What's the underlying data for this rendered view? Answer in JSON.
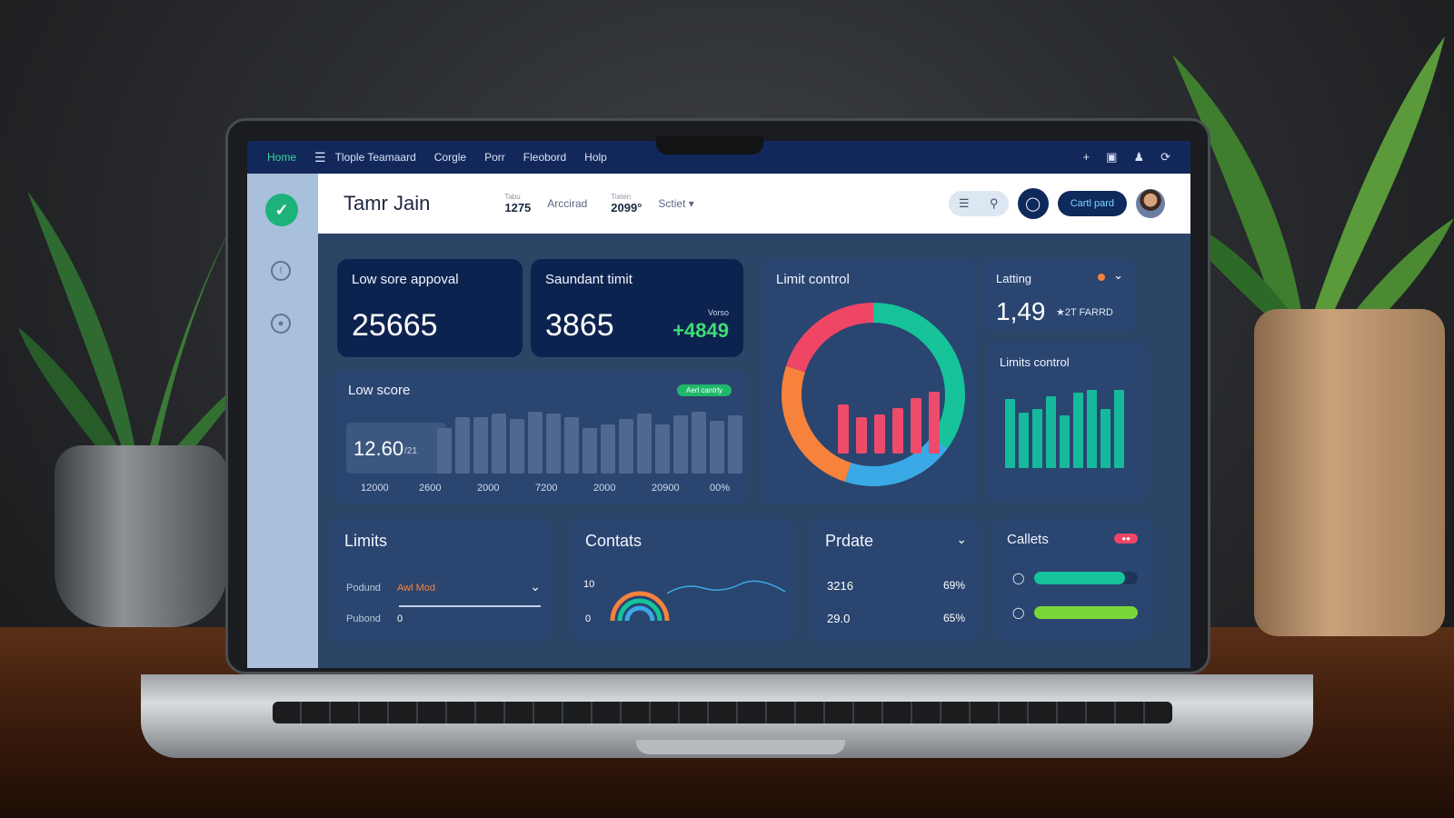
{
  "topbar": {
    "home": "Home",
    "items": [
      "Tlople Teamaard",
      "Corgle",
      "Porr",
      "Fleobord",
      "Holp"
    ],
    "icons": [
      "plus-icon",
      "document-icon",
      "users-icon",
      "refresh-icon"
    ]
  },
  "header": {
    "user_name": "Tamr Jain",
    "stat1_label": "Tabu",
    "stat1_value": "1275",
    "link1": "Arccirad",
    "stat2_label": "Tiaten",
    "stat2_value": "2099°",
    "select_label": "Sctiet",
    "card_button": "Cartl pard"
  },
  "cards": {
    "low_sore": {
      "title": "Low sore appoval",
      "value": "25665"
    },
    "saundant": {
      "title": "Saundant timit",
      "value": "3865",
      "delta_label": "Vorso",
      "delta": "+4849"
    },
    "limit_control": {
      "title": "Limit control"
    },
    "latting": {
      "title": "Latting",
      "value": "1,49",
      "sub": "★2T FARRD"
    },
    "limits_control": {
      "title": "Limits control"
    },
    "low_score": {
      "title": "Low score",
      "badge": "Aerl cantrly",
      "value": "12.60",
      "unit": "/21",
      "x_labels": [
        "12000",
        "2600",
        "2000",
        "7200",
        "2000",
        "20900",
        "00%"
      ]
    },
    "limits": {
      "title": "Limits",
      "row1_label": "Podund",
      "row1_value": "Awl Mod",
      "row2_label": "Pubond",
      "row2_value": "0"
    },
    "contats": {
      "title": "Contats",
      "y_top": "10",
      "y_bottom": "0"
    },
    "prdate": {
      "title": "Prdate",
      "rows": [
        {
          "a": "3216",
          "b": "69%"
        },
        {
          "a": "29.0",
          "b": "65%"
        }
      ]
    },
    "callets": {
      "title": "Callets",
      "badge": "●●",
      "progress": [
        0.88,
        1.0
      ]
    }
  },
  "chart_data": [
    {
      "type": "bar",
      "title": "Low score",
      "values": [
        5,
        6.2,
        6.2,
        6.6,
        6.0,
        6.8,
        6.6,
        6.2,
        5.0,
        5.4,
        6.0,
        6.6,
        5.4,
        6.4,
        6.8,
        5.8,
        6.4
      ],
      "x_tick_labels": [
        "12000",
        "2600",
        "2000",
        "7200",
        "2000",
        "20900",
        "00%"
      ]
    },
    {
      "type": "pie",
      "title": "Limit control",
      "slices": [
        {
          "value": 35,
          "color": "#16c39a"
        },
        {
          "value": 20,
          "color": "#3aa9e6"
        },
        {
          "value": 25,
          "color": "#f7823b"
        },
        {
          "value": 20,
          "color": "#ef4665"
        }
      ],
      "inner_bars": [
        3,
        2.2,
        2.4,
        2.8,
        3.4,
        3.8
      ]
    },
    {
      "type": "bar",
      "title": "Limits control",
      "values": [
        4.2,
        3.4,
        3.6,
        4.4,
        3.2,
        4.6,
        4.8,
        3.6,
        4.8
      ]
    }
  ]
}
